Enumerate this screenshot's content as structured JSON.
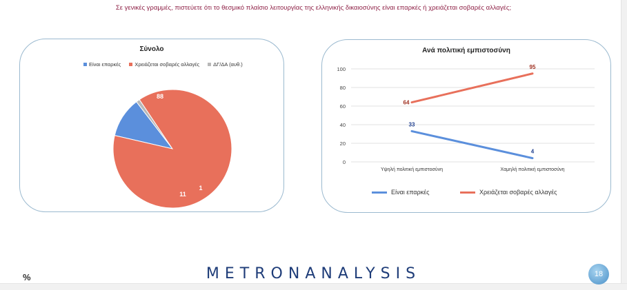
{
  "question": "Σε γενικές γραμμές, πιστεύετε ότι το θεσμικό πλαίσιο λειτουργίας της ελληνικής δικαιοσύνης είναι επαρκές ή χρειάζεται σοβαρές αλλαγές;",
  "logo": {
    "part1": "METRON",
    "part2": "ANALYSIS"
  },
  "page_number": "18",
  "unit_label": "%",
  "colors": {
    "blue": "#5b8fdc",
    "orange": "#e8705b",
    "gray": "#b8b8b8",
    "panel_border": "#9ab9cf",
    "title_text": "#8e2146"
  },
  "chart_data": [
    {
      "type": "pie",
      "title": "Σύνολο",
      "legend_position": "top",
      "categories": [
        "Είναι επαρκές",
        "Χρειάζεται σοβαρές αλλαγές",
        "ΔΓ/ΔΑ (αυθ.)"
      ],
      "values": [
        11,
        88,
        1
      ],
      "colors": [
        "#5b8fdc",
        "#e8705b",
        "#b8b8b8"
      ]
    },
    {
      "type": "line",
      "title": "Ανά πολιτική εμπιστοσύνη",
      "categories": [
        "Υψηλή πολιτική εμπιστοσύνη",
        "Χαμηλή πολιτική εμπιστοσύνη"
      ],
      "series": [
        {
          "name": "Είναι επαρκές",
          "values": [
            33,
            4
          ],
          "color": "#5b8fdc",
          "label_color": "#1f3f8f"
        },
        {
          "name": "Χρειάζεται σοβαρές αλλαγές",
          "values": [
            64,
            95
          ],
          "color": "#e8705b",
          "label_color": "#a03020"
        }
      ],
      "ylim": [
        0,
        100
      ],
      "yticks": [
        0,
        20,
        40,
        60,
        80,
        100
      ],
      "grid": true,
      "legend_position": "bottom"
    }
  ]
}
